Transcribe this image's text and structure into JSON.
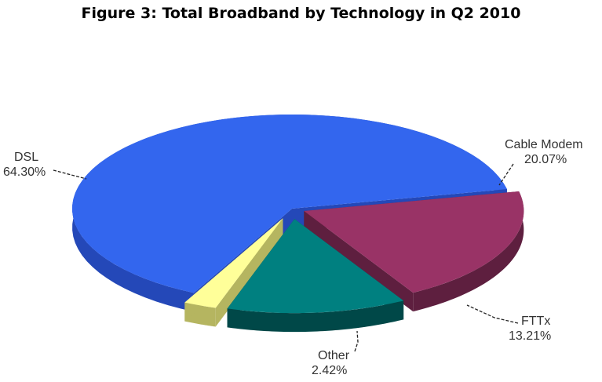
{
  "chart_data": {
    "type": "pie",
    "title": "Figure 3: Total Broadband by Technology in Q2 2010",
    "slices": [
      {
        "label": "DSL",
        "value": 64.3,
        "value_text": "64.30%",
        "color": "#3366EE",
        "side_color": "#2448B8"
      },
      {
        "label": "Cable Modem",
        "value": 20.07,
        "value_text": "20.07%",
        "color": "#993366",
        "side_color": "#5E1F3F"
      },
      {
        "label": "FTTx",
        "value": 13.21,
        "value_text": "13.21%",
        "color": "#008080",
        "side_color": "#004848"
      },
      {
        "label": "Other",
        "value": 2.42,
        "value_text": "2.42%",
        "color": "#FFFF99",
        "side_color": "#B5B560"
      }
    ],
    "exploded": true,
    "three_d": true,
    "legend": "none",
    "data_labels": "outside with leader lines"
  }
}
